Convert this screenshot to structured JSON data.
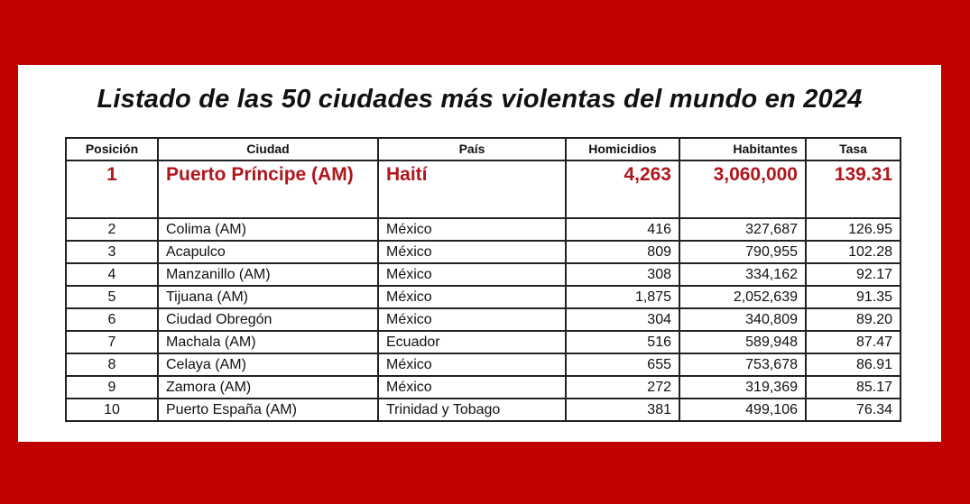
{
  "title": "Listado de las 50 ciudades más violentas del mundo en 2024",
  "accent_color": "#b0161c",
  "background_color": "#c10000",
  "columns": [
    "Posición",
    "Ciudad",
    "País",
    "Homicidios",
    "Habitantes",
    "Tasa"
  ],
  "rows": [
    {
      "pos": "1",
      "city": "Puerto Príncipe (AM)",
      "country": "Haití",
      "homicides": "4,263",
      "population": "3,060,000",
      "rate": "139.31"
    },
    {
      "pos": "2",
      "city": "Colima (AM)",
      "country": "México",
      "homicides": "416",
      "population": "327,687",
      "rate": "126.95"
    },
    {
      "pos": "3",
      "city": "Acapulco",
      "country": "México",
      "homicides": "809",
      "population": "790,955",
      "rate": "102.28"
    },
    {
      "pos": "4",
      "city": "Manzanillo (AM)",
      "country": "México",
      "homicides": "308",
      "population": "334,162",
      "rate": "92.17"
    },
    {
      "pos": "5",
      "city": "Tijuana (AM)",
      "country": "México",
      "homicides": "1,875",
      "population": "2,052,639",
      "rate": "91.35"
    },
    {
      "pos": "6",
      "city": "Ciudad Obregón",
      "country": "México",
      "homicides": "304",
      "population": "340,809",
      "rate": "89.20"
    },
    {
      "pos": "7",
      "city": "Machala (AM)",
      "country": "Ecuador",
      "homicides": "516",
      "population": "589,948",
      "rate": "87.47"
    },
    {
      "pos": "8",
      "city": "Celaya (AM)",
      "country": "México",
      "homicides": "655",
      "population": "753,678",
      "rate": "86.91"
    },
    {
      "pos": "9",
      "city": "Zamora (AM)",
      "country": "México",
      "homicides": "272",
      "population": "319,369",
      "rate": "85.17"
    },
    {
      "pos": "10",
      "city": "Puerto España (AM)",
      "country": "Trinidad y Tobago",
      "homicides": "381",
      "population": "499,106",
      "rate": "76.34"
    }
  ]
}
